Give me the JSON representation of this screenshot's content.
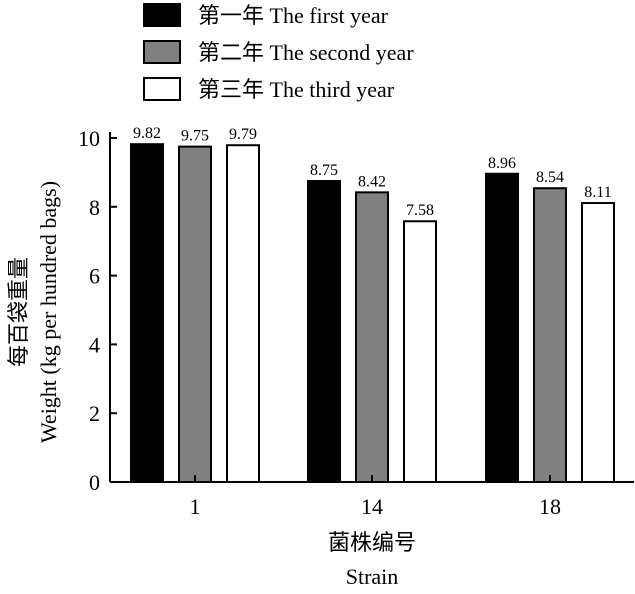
{
  "chart_data": {
    "type": "bar",
    "categories": [
      "1",
      "14",
      "18"
    ],
    "series": [
      {
        "name": "第一年 The first year",
        "color": "#000000",
        "values": [
          9.82,
          8.75,
          8.96
        ]
      },
      {
        "name": "第二年 The second year",
        "color": "#808080",
        "values": [
          9.75,
          8.42,
          8.54
        ]
      },
      {
        "name": "第三年 The third year",
        "color": "#ffffff",
        "values": [
          9.79,
          7.58,
          8.11
        ]
      }
    ],
    "data_labels": [
      [
        "9.82",
        "9.75",
        "9.79"
      ],
      [
        "8.75",
        "8.42",
        "7.58"
      ],
      [
        "8.96",
        "8.54",
        "8.11"
      ]
    ],
    "xlabel": "菌株编号",
    "xlabel_en": "Strain",
    "ylabel": "每百袋重量",
    "ylabel_en": "Weight (kg per hundred bags)",
    "ylim": [
      0,
      10
    ],
    "yticks": [
      0,
      2,
      4,
      6,
      8,
      10
    ],
    "grid": false,
    "legend_position": "top-left"
  }
}
